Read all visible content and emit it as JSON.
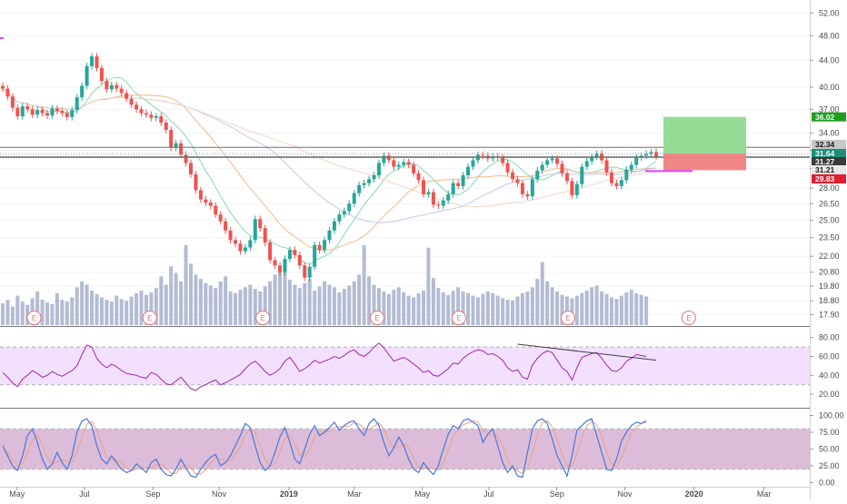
{
  "chart_data": {
    "type": "candlestick",
    "price_axis": {
      "ticks": [
        "52.00",
        "48.00",
        "44.00",
        "40.00",
        "37.00",
        "34.00",
        "32.00",
        "30.00",
        "28.00",
        "26.50",
        "25.00",
        "23.50",
        "22.00",
        "20.80",
        "19.80",
        "18.80",
        "17.90"
      ],
      "scale": "log",
      "ylim": [
        17.5,
        53.5
      ]
    },
    "time_axis": {
      "labels": [
        "May",
        "Jul",
        "Sep",
        "Nov",
        "2019",
        "Mar",
        "May",
        "Jul",
        "Sep",
        "Nov",
        "2020",
        "Mar"
      ],
      "bold": [
        "2019",
        "2020"
      ]
    },
    "candles_close": [
      39.8,
      38.7,
      37.2,
      36.1,
      37.4,
      37.0,
      36.3,
      36.9,
      36.5,
      36.2,
      37.1,
      36.8,
      36.5,
      36.0,
      36.9,
      38.6,
      40.2,
      43.1,
      44.6,
      42.8,
      40.9,
      39.7,
      40.3,
      39.8,
      39.2,
      38.4,
      37.6,
      37.0,
      36.5,
      36.3,
      35.9,
      36.1,
      35.3,
      34.4,
      32.3,
      32.8,
      31.5,
      30.6,
      29.4,
      27.8,
      26.9,
      26.6,
      26.3,
      25.5,
      24.9,
      24.1,
      23.3,
      23.0,
      22.4,
      22.7,
      23.3,
      25.1,
      24.3,
      23.1,
      21.7,
      21.3,
      20.8,
      21.8,
      22.5,
      22.1,
      21.3,
      20.4,
      21.2,
      22.9,
      22.5,
      23.3,
      24.1,
      24.9,
      25.5,
      25.8,
      26.5,
      27.5,
      28.3,
      28.5,
      28.9,
      29.3,
      30.6,
      31.4,
      30.9,
      30.2,
      30.4,
      30.7,
      30.4,
      29.5,
      28.8,
      27.4,
      27.6,
      26.4,
      26.3,
      26.8,
      27.4,
      28.5,
      28.2,
      29.3,
      30.2,
      30.9,
      31.5,
      31.4,
      31.1,
      31.3,
      31.2,
      30.6,
      29.6,
      28.9,
      28.5,
      27.4,
      27.2,
      28.9,
      29.8,
      30.4,
      30.9,
      31.1,
      30.5,
      29.5,
      28.7,
      27.3,
      28.4,
      30.2,
      30.8,
      31.3,
      31.6,
      30.9,
      29.6,
      28.5,
      28.2,
      28.8,
      29.9,
      30.4,
      31.2,
      31.4,
      31.6,
      31.8,
      31.3
    ],
    "volume": [
      26,
      30,
      22,
      35,
      28,
      24,
      32,
      40,
      30,
      27,
      25,
      38,
      30,
      28,
      33,
      45,
      52,
      48,
      41,
      37,
      33,
      30,
      28,
      35,
      31,
      29,
      34,
      38,
      41,
      36,
      39,
      44,
      58,
      48,
      70,
      62,
      52,
      95,
      73,
      60,
      55,
      50,
      47,
      44,
      52,
      58,
      40,
      38,
      42,
      45,
      48,
      43,
      40,
      46,
      52,
      60,
      65,
      68,
      54,
      48,
      44,
      50,
      55,
      41,
      46,
      52,
      48,
      45,
      39,
      43,
      47,
      52,
      60,
      95,
      58,
      48,
      44,
      40,
      37,
      42,
      45,
      39,
      35,
      33,
      38,
      41,
      92,
      56,
      44,
      39,
      36,
      41,
      45,
      40,
      38,
      35,
      33,
      37,
      40,
      38,
      35,
      32,
      30,
      29,
      34,
      38,
      40,
      45,
      55,
      75,
      52,
      45,
      40,
      36,
      34,
      32,
      35,
      38,
      41,
      45,
      47,
      40,
      37,
      33,
      31,
      35,
      39,
      42,
      38,
      36,
      34
    ],
    "rsi": {
      "ticks": [
        "80.00",
        "60.00",
        "40.00",
        "20.00"
      ],
      "upper": 70,
      "lower": 30,
      "values": [
        43,
        38,
        32,
        28,
        36,
        40,
        45,
        42,
        38,
        40,
        44,
        41,
        39,
        42,
        45,
        50,
        62,
        72,
        70,
        58,
        52,
        48,
        52,
        49,
        45,
        42,
        41,
        40,
        38,
        37,
        43,
        41,
        36,
        31,
        30,
        34,
        38,
        32,
        26,
        24,
        28,
        30,
        33,
        35,
        30,
        32,
        35,
        38,
        41,
        47,
        52,
        55,
        50,
        44,
        40,
        43,
        47,
        55,
        59,
        52,
        44,
        47,
        51,
        56,
        53,
        55,
        57,
        60,
        58,
        61,
        65,
        67,
        62,
        60,
        64,
        70,
        74,
        69,
        62,
        55,
        57,
        59,
        56,
        52,
        48,
        43,
        45,
        40,
        39,
        43,
        47,
        53,
        52,
        58,
        62,
        65,
        67,
        66,
        62,
        63,
        60,
        56,
        48,
        44,
        46,
        38,
        36,
        51,
        58,
        63,
        66,
        64,
        56,
        48,
        44,
        35,
        48,
        59,
        61,
        63,
        64,
        58,
        51,
        45,
        44,
        48,
        55,
        58,
        62,
        61,
        60
      ],
      "trendline_start": 73,
      "trendline_end": 56
    },
    "stoch": {
      "ticks": [
        "100.00",
        "75.00",
        "50.00",
        "25.00",
        "0.00"
      ],
      "upper": 80,
      "lower": 20,
      "k": [
        55,
        40,
        25,
        18,
        40,
        70,
        80,
        60,
        35,
        20,
        28,
        45,
        30,
        20,
        40,
        75,
        92,
        95,
        85,
        55,
        35,
        28,
        40,
        30,
        20,
        15,
        18,
        28,
        22,
        15,
        30,
        35,
        20,
        12,
        10,
        20,
        35,
        22,
        10,
        8,
        20,
        30,
        38,
        42,
        25,
        30,
        40,
        55,
        70,
        88,
        82,
        55,
        30,
        18,
        25,
        45,
        68,
        82,
        60,
        35,
        28,
        50,
        72,
        85,
        70,
        75,
        82,
        90,
        78,
        85,
        90,
        92,
        80,
        70,
        88,
        95,
        85,
        60,
        40,
        52,
        68,
        55,
        35,
        20,
        15,
        30,
        20,
        12,
        25,
        50,
        72,
        85,
        80,
        92,
        95,
        90,
        85,
        60,
        72,
        80,
        55,
        30,
        15,
        25,
        10,
        8,
        45,
        80,
        92,
        95,
        88,
        65,
        40,
        25,
        10,
        40,
        78,
        85,
        92,
        95,
        70,
        45,
        20,
        18,
        35,
        62,
        75,
        85,
        90,
        88,
        92
      ],
      "d": [
        50,
        45,
        35,
        25,
        28,
        45,
        63,
        70,
        58,
        38,
        28,
        31,
        34,
        32,
        29,
        45,
        69,
        87,
        91,
        78,
        58,
        39,
        34,
        33,
        30,
        22,
        18,
        20,
        23,
        22,
        22,
        27,
        28,
        22,
        14,
        14,
        22,
        26,
        22,
        13,
        13,
        19,
        29,
        37,
        35,
        32,
        32,
        42,
        55,
        71,
        80,
        75,
        56,
        34,
        24,
        29,
        46,
        65,
        70,
        59,
        41,
        38,
        50,
        69,
        76,
        77,
        76,
        82,
        83,
        84,
        84,
        89,
        87,
        81,
        79,
        84,
        89,
        80,
        62,
        51,
        53,
        58,
        53,
        37,
        23,
        22,
        22,
        21,
        19,
        29,
        49,
        69,
        79,
        86,
        89,
        92,
        90,
        78,
        72,
        71,
        69,
        55,
        33,
        23,
        17,
        14,
        21,
        44,
        72,
        89,
        92,
        83,
        64,
        43,
        25,
        25,
        43,
        68,
        85,
        91,
        86,
        70,
        45,
        28,
        24,
        38,
        57,
        74,
        83,
        88,
        90
      ]
    },
    "tags": [
      {
        "label": "36.02",
        "bg": "#1e9e1e",
        "fg": "#ffffff"
      },
      {
        "label": "32.34",
        "bg": "#c8c8c8",
        "fg": "#1a1a1a"
      },
      {
        "label": "31.64",
        "bg": "#1f8f7a",
        "fg": "#ffffff"
      },
      {
        "label": "31.27",
        "bg": "#3a3a3a",
        "fg": "#ffffff"
      },
      {
        "label": "31.21",
        "bg": "#e8e8e8",
        "fg": "#1a1a1a"
      },
      {
        "label": "29.83",
        "bg": "#e0202f",
        "fg": "#ffffff"
      }
    ],
    "position_tool": {
      "target": 36.02,
      "entry": 31.64,
      "stop": 29.83
    },
    "horizontal_lines": [
      32.34,
      31.27,
      31.21
    ],
    "earnings_marker_label": "E",
    "colors": {
      "up": "#26a69a",
      "down": "#ef5350",
      "osc_fill": "#f3e0ff",
      "rsi_line": "#9c27b0",
      "stoch_k": "#4a78d6",
      "stoch_d": "#e6a38a",
      "target_fill": "#8fd98f",
      "stop_fill": "#f08080"
    }
  }
}
